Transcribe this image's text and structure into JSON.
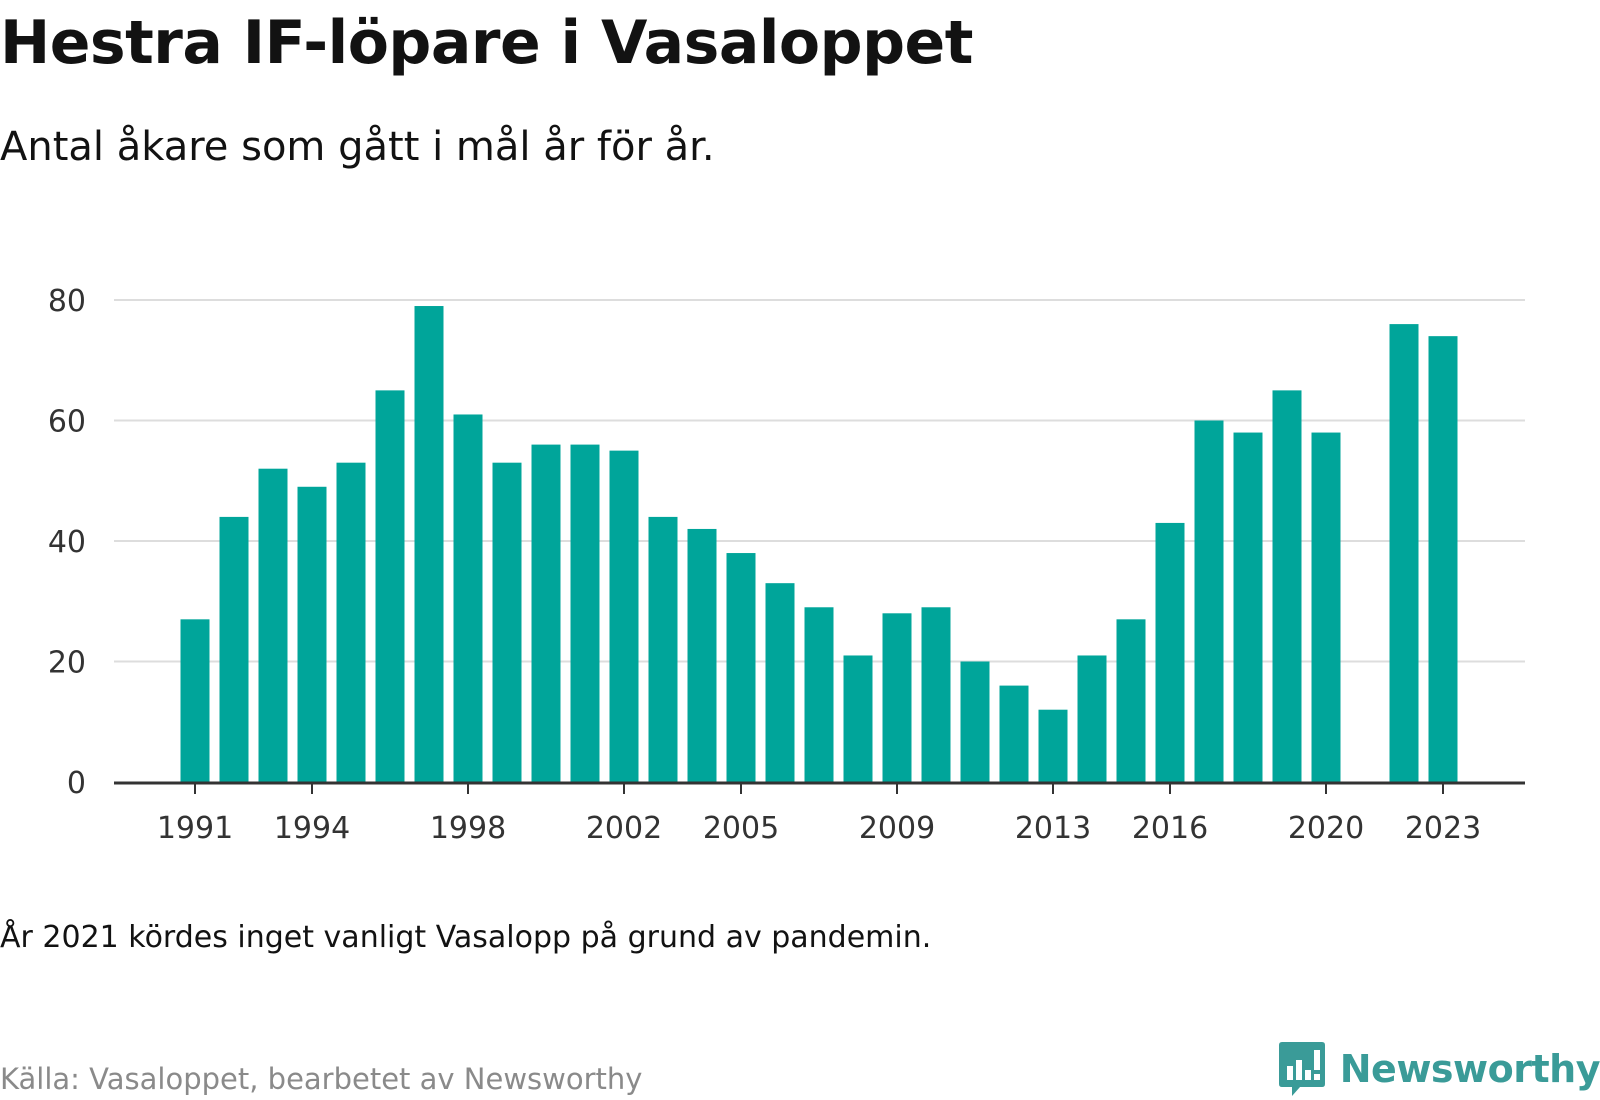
{
  "header": {
    "title": "Hestra IF-löpare i Vasaloppet",
    "subtitle": "Antal åkare som gått i mål år för år."
  },
  "footer": {
    "note": "År 2021 kördes inget vanligt Vasalopp på grund av pandemin.",
    "source": "Källa: Vasaloppet, bearbetet av Newsworthy",
    "brand": "Newsworthy",
    "logo_icon": "newsworthy-logo-icon"
  },
  "colors": {
    "bar": "#00a59a",
    "grid": "#dddddd",
    "axis": "#333333",
    "brand": "#3a9b98"
  },
  "chart_data": {
    "type": "bar",
    "title": "Hestra IF-löpare i Vasaloppet",
    "subtitle": "Antal åkare som gått i mål år för år.",
    "xlabel": "",
    "ylabel": "",
    "ylim": [
      0,
      80
    ],
    "yticks": [
      0,
      20,
      40,
      60,
      80
    ],
    "xticks": [
      1991,
      1994,
      1998,
      2002,
      2005,
      2009,
      2013,
      2016,
      2020,
      2023
    ],
    "grid": true,
    "categories": [
      1991,
      1992,
      1993,
      1994,
      1995,
      1996,
      1997,
      1998,
      1999,
      2000,
      2001,
      2002,
      2003,
      2004,
      2005,
      2006,
      2007,
      2008,
      2009,
      2010,
      2011,
      2012,
      2013,
      2014,
      2015,
      2016,
      2017,
      2018,
      2019,
      2020,
      2021,
      2022,
      2023
    ],
    "values": [
      27,
      44,
      52,
      49,
      53,
      65,
      79,
      61,
      53,
      56,
      56,
      55,
      44,
      42,
      38,
      33,
      29,
      21,
      28,
      29,
      20,
      16,
      12,
      21,
      27,
      43,
      60,
      58,
      65,
      58,
      null,
      76,
      74
    ]
  }
}
